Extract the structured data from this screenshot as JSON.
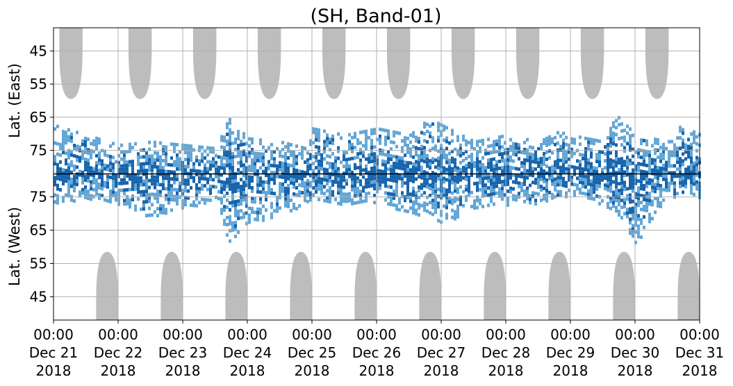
{
  "chart_data": {
    "type": "heatmap",
    "title": "(SH, Band-01)",
    "upper_panel": {
      "ylabel": "Lat. (East)",
      "ytick_labels": [
        "45",
        "55",
        "65",
        "75"
      ],
      "ytick_values": [
        45,
        55,
        65,
        75
      ],
      "ylim": [
        82,
        38
      ]
    },
    "lower_panel": {
      "ylabel": "Lat. (West)",
      "ytick_labels": [
        "75",
        "65",
        "55",
        "45"
      ],
      "ytick_values": [
        75,
        65,
        55,
        45
      ],
      "ylim": [
        82,
        38
      ]
    },
    "x_ticks": [
      {
        "time": "00:00",
        "date": "Dec 21",
        "year": "2018",
        "day": 0
      },
      {
        "time": "00:00",
        "date": "Dec 22",
        "year": "2018",
        "day": 1
      },
      {
        "time": "00:00",
        "date": "Dec 23",
        "year": "2018",
        "day": 2
      },
      {
        "time": "00:00",
        "date": "Dec 24",
        "year": "2018",
        "day": 3
      },
      {
        "time": "00:00",
        "date": "Dec 25",
        "year": "2018",
        "day": 4
      },
      {
        "time": "00:00",
        "date": "Dec 26",
        "year": "2018",
        "day": 5
      },
      {
        "time": "00:00",
        "date": "Dec 27",
        "year": "2018",
        "day": 6
      },
      {
        "time": "00:00",
        "date": "Dec 28",
        "year": "2018",
        "day": 7
      },
      {
        "time": "00:00",
        "date": "Dec 29",
        "year": "2018",
        "day": 8
      },
      {
        "time": "00:00",
        "date": "Dec 30",
        "year": "2018",
        "day": 9
      },
      {
        "time": "00:00",
        "date": "Dec 31",
        "year": "2018",
        "day": 10
      }
    ],
    "xlim": [
      0,
      10
    ],
    "grid": true,
    "colors": {
      "no_data": "#bdbdbd",
      "scatter_light": "#62a6d6",
      "scatter_dark": "#1764ad",
      "grid": "#b0b0b0",
      "divider": "#000000"
    },
    "upper_gaps": [
      {
        "center": 0.27,
        "half_width": 0.18,
        "bottom_lat": 59.5
      },
      {
        "center": 1.34,
        "half_width": 0.18,
        "bottom_lat": 59.5
      },
      {
        "center": 2.34,
        "half_width": 0.18,
        "bottom_lat": 59.5
      },
      {
        "center": 3.34,
        "half_width": 0.18,
        "bottom_lat": 59.5
      },
      {
        "center": 4.34,
        "half_width": 0.18,
        "bottom_lat": 59.5
      },
      {
        "center": 5.34,
        "half_width": 0.18,
        "bottom_lat": 59.5
      },
      {
        "center": 6.34,
        "half_width": 0.18,
        "bottom_lat": 59.5
      },
      {
        "center": 7.34,
        "half_width": 0.18,
        "bottom_lat": 59.5
      },
      {
        "center": 8.34,
        "half_width": 0.18,
        "bottom_lat": 59.5
      },
      {
        "center": 9.34,
        "half_width": 0.18,
        "bottom_lat": 59.5
      }
    ],
    "lower_gaps": [
      {
        "center": 0.83,
        "half_width": 0.17,
        "top_lat": 58.5
      },
      {
        "center": 1.83,
        "half_width": 0.17,
        "top_lat": 58.5
      },
      {
        "center": 2.83,
        "half_width": 0.17,
        "top_lat": 58.5
      },
      {
        "center": 3.83,
        "half_width": 0.17,
        "top_lat": 58.5
      },
      {
        "center": 4.83,
        "half_width": 0.17,
        "top_lat": 58.5
      },
      {
        "center": 5.83,
        "half_width": 0.17,
        "top_lat": 58.5
      },
      {
        "center": 6.83,
        "half_width": 0.17,
        "top_lat": 58.5
      },
      {
        "center": 7.83,
        "half_width": 0.17,
        "top_lat": 58.5
      },
      {
        "center": 8.83,
        "half_width": 0.17,
        "top_lat": 58.5
      },
      {
        "center": 9.83,
        "half_width": 0.17,
        "top_lat": 58.5
      }
    ],
    "scatter_envelope": {
      "description_free": true,
      "upper_extent_lat": [
        [
          0.0,
          67
        ],
        [
          0.5,
          70
        ],
        [
          1.0,
          73
        ],
        [
          1.5,
          72
        ],
        [
          2.0,
          73
        ],
        [
          2.5,
          74
        ],
        [
          2.7,
          65
        ],
        [
          3.0,
          71
        ],
        [
          3.5,
          72
        ],
        [
          3.9,
          74
        ],
        [
          4.0,
          68
        ],
        [
          4.5,
          70
        ],
        [
          5.0,
          68
        ],
        [
          5.5,
          70
        ],
        [
          5.8,
          65
        ],
        [
          6.0,
          67
        ],
        [
          6.5,
          72
        ],
        [
          7.0,
          70
        ],
        [
          7.5,
          72
        ],
        [
          7.8,
          69
        ],
        [
          8.0,
          70
        ],
        [
          8.5,
          72
        ],
        [
          8.7,
          64
        ],
        [
          9.0,
          70
        ],
        [
          9.5,
          72
        ],
        [
          9.7,
          67
        ],
        [
          10.0,
          70
        ]
      ],
      "lower_extent_lat": [
        [
          0.0,
          73
        ],
        [
          0.5,
          75
        ],
        [
          1.0,
          73
        ],
        [
          1.5,
          69
        ],
        [
          2.0,
          72
        ],
        [
          2.5,
          74
        ],
        [
          2.7,
          62
        ],
        [
          3.0,
          67
        ],
        [
          3.5,
          70
        ],
        [
          4.0,
          74
        ],
        [
          4.5,
          73
        ],
        [
          5.0,
          73
        ],
        [
          5.5,
          71
        ],
        [
          6.0,
          67
        ],
        [
          6.5,
          72
        ],
        [
          7.0,
          73
        ],
        [
          7.5,
          73
        ],
        [
          8.0,
          76
        ],
        [
          8.5,
          73
        ],
        [
          8.8,
          68
        ],
        [
          9.0,
          61
        ],
        [
          9.3,
          69
        ],
        [
          9.5,
          75
        ],
        [
          10.0,
          75
        ]
      ]
    }
  }
}
